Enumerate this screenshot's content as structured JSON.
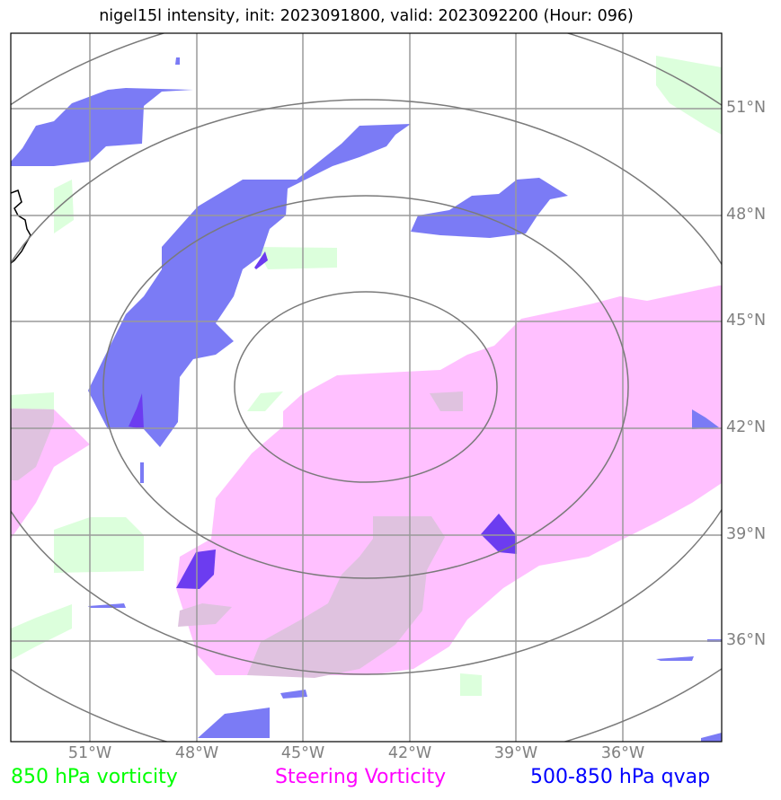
{
  "title": "nigel15l intensity, init: 2023091800, valid: 2023092200 (Hour: 096)",
  "lat_labels": [
    "51°N",
    "48°N",
    "45°N",
    "42°N",
    "39°N",
    "36°N"
  ],
  "lon_labels": [
    "51°W",
    "48°W",
    "45°W",
    "42°W",
    "39°W",
    "36°W"
  ],
  "legend": {
    "vorticity_850": {
      "label": "850 hPa vorticity",
      "color": "#00ff00"
    },
    "steering": {
      "label": "Steering Vorticity",
      "color": "#ff00ff"
    },
    "qvap": {
      "label": "500-850 hPa qvap",
      "color": "#0000ff"
    }
  },
  "colors": {
    "vorticity_fill": "#dcffdc",
    "steering_fill": "#ffc0ff",
    "steering_overlap": "#dfc2df",
    "qvap_fill": "#7b7bf5",
    "qvap_dark": "#6c3cf0",
    "grid": "#9a9a9a",
    "range_rings": "#7a7a7a"
  }
}
